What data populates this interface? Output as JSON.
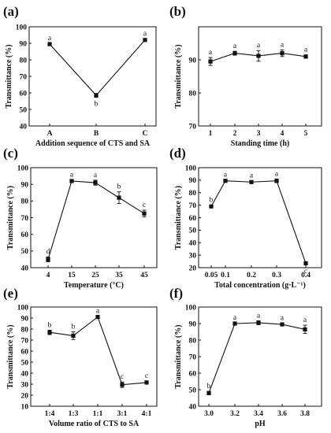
{
  "chart_data": [
    {
      "panel": "(a)",
      "type": "line",
      "xlabel": "Addition sequence of CTS and SA",
      "ylabel": "Transmittance (%)",
      "categories": [
        "A",
        "B",
        "C"
      ],
      "values": [
        89.5,
        58.5,
        92
      ],
      "errors": [
        0.5,
        1.2,
        0.8
      ],
      "letters": [
        "a",
        "b",
        "a"
      ],
      "ylim": [
        40,
        100
      ],
      "yticks": [
        40,
        50,
        60,
        70,
        80,
        90,
        100
      ],
      "yticklabels": [
        "40",
        "50",
        "60",
        "70",
        "80",
        "90",
        "100"
      ],
      "grid": false,
      "legend": "none"
    },
    {
      "panel": "(b)",
      "type": "line",
      "xlabel": "Standing time (h)",
      "ylabel": "Transmittance (%)",
      "categories": [
        "1",
        "2",
        "3",
        "4",
        "5"
      ],
      "values": [
        89.5,
        92,
        91.2,
        92,
        91
      ],
      "errors": [
        1.2,
        0.6,
        1.6,
        1.0,
        0.5
      ],
      "letters": [
        "a",
        "a",
        "a",
        "a",
        "a"
      ],
      "ylim": [
        70,
        100
      ],
      "yticks": [
        70,
        80,
        90
      ],
      "yticklabels": [
        "70",
        "80",
        "90"
      ],
      "grid": false,
      "legend": "none"
    },
    {
      "panel": "(c)",
      "type": "line",
      "xlabel": "Temperature (°C)",
      "ylabel": "Transmittance (%)",
      "categories": [
        "4",
        "15",
        "25",
        "35",
        "45"
      ],
      "values": [
        45,
        92,
        91,
        82,
        72.5
      ],
      "errors": [
        1.5,
        0.7,
        1.5,
        3.5,
        2.0
      ],
      "letters": [
        "d",
        "a",
        "a",
        "b",
        "c"
      ],
      "ylim": [
        40,
        100
      ],
      "yticks": [
        40,
        50,
        60,
        70,
        80,
        90,
        100
      ],
      "yticklabels": [
        "40",
        "50",
        "60",
        "70",
        "80",
        "90",
        "100"
      ],
      "grid": false,
      "legend": "none"
    },
    {
      "panel": "(d)",
      "type": "line",
      "xlabel": "Total concentration (g·L⁻¹)",
      "ylabel": "Transmittance (%)",
      "x": [
        0.05,
        0.1,
        0.2,
        0.3,
        0.4
      ],
      "categories": [
        "0.05",
        "0.1",
        "0.2",
        "0.3",
        "0.4"
      ],
      "values": [
        69,
        89.5,
        88.5,
        89.5,
        23.5
      ],
      "errors": [
        1.0,
        0.8,
        1.2,
        1.5,
        1.0
      ],
      "letters": [
        "b",
        "a",
        "a",
        "a",
        "c"
      ],
      "ylim": [
        20,
        100
      ],
      "yticks": [
        20,
        30,
        40,
        50,
        60,
        70,
        80,
        90,
        100
      ],
      "yticklabels": [
        "20",
        "30",
        "40",
        "50",
        "60",
        "70",
        "80",
        "90",
        "100"
      ],
      "grid": false,
      "legend": "none"
    },
    {
      "panel": "(e)",
      "type": "line",
      "xlabel": "Volume ratio of CTS to SA",
      "ylabel": "Transmittance (%)",
      "categories": [
        "1:4",
        "1:3",
        "1:1",
        "3:1",
        "4:1"
      ],
      "values": [
        77,
        74,
        91,
        29.5,
        31.5
      ],
      "errors": [
        2.0,
        3.5,
        0.8,
        2.5,
        1.5
      ],
      "letters": [
        "b",
        "b",
        "a",
        "c",
        "c"
      ],
      "ylim": [
        10,
        100
      ],
      "yticks": [
        10,
        20,
        30,
        40,
        50,
        60,
        70,
        80,
        90,
        100
      ],
      "yticklabels": [
        "10",
        "20",
        "30",
        "40",
        "50",
        "60",
        "70",
        "80",
        "90",
        "100"
      ],
      "grid": false,
      "legend": "none"
    },
    {
      "panel": "(f)",
      "type": "line",
      "xlabel": "pH",
      "ylabel": "Transmittance (%)",
      "categories": [
        "3.0",
        "3.2",
        "3.4",
        "3.6",
        "3.8"
      ],
      "values": [
        48,
        90,
        90.5,
        89.5,
        86.5
      ],
      "errors": [
        1.0,
        0.5,
        1.2,
        0.8,
        2.5
      ],
      "letters": [
        "b",
        "a",
        "a",
        "a",
        "a"
      ],
      "ylim": [
        40,
        100
      ],
      "yticks": [
        40,
        50,
        60,
        70,
        80,
        90,
        100
      ],
      "yticklabels": [
        "40",
        "50",
        "60",
        "70",
        "80",
        "90",
        "100"
      ],
      "grid": false,
      "legend": "none"
    }
  ]
}
